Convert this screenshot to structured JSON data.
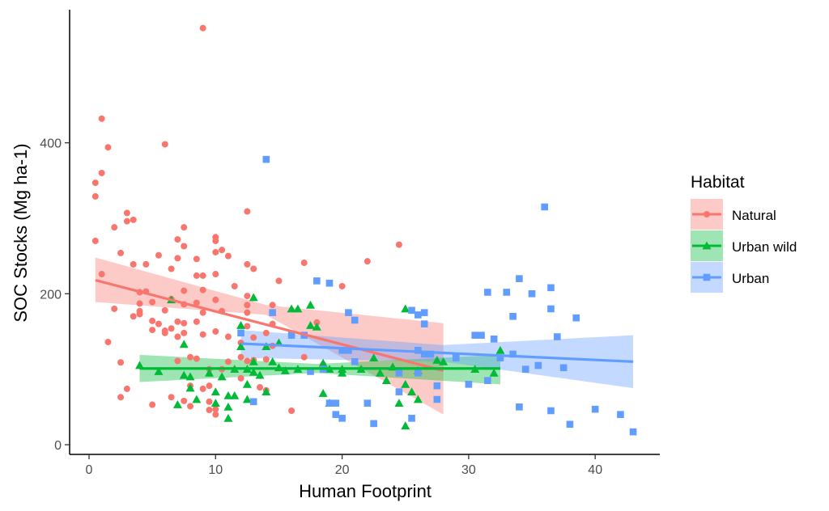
{
  "chart_data": {
    "type": "scatter",
    "xlabel": "Human Footprint",
    "ylabel": "SOC Stocks (Mg ha-1)",
    "xlim": [
      -1.5,
      45
    ],
    "ylim": [
      -25,
      575
    ],
    "x_ticks": [
      0,
      10,
      20,
      30,
      40
    ],
    "y_ticks": [
      0,
      200,
      400
    ],
    "grid": false,
    "legend": {
      "title": "Habitat",
      "placement": "right",
      "entries": [
        "Natural",
        "Urban wild",
        "Urban"
      ]
    },
    "series": [
      {
        "name": "Natural",
        "color": "#F8766D",
        "marker": "circle",
        "trend": [
          [
            0.5,
            218
          ],
          [
            28,
            98
          ]
        ],
        "band_upper": [
          [
            0.5,
            248
          ],
          [
            14,
            185
          ],
          [
            28,
            161
          ]
        ],
        "band_lower": [
          [
            0.5,
            189
          ],
          [
            14,
            172
          ],
          [
            28,
            40
          ]
        ],
        "points": [
          [
            0.5,
            347
          ],
          [
            0.5,
            329
          ],
          [
            0.5,
            270
          ],
          [
            1,
            432
          ],
          [
            1,
            360
          ],
          [
            1,
            226
          ],
          [
            1.5,
            394
          ],
          [
            1.5,
            136
          ],
          [
            2,
            288
          ],
          [
            2,
            180
          ],
          [
            2.5,
            254
          ],
          [
            2.5,
            109
          ],
          [
            2.5,
            63
          ],
          [
            3,
            307
          ],
          [
            3,
            296
          ],
          [
            3,
            74
          ],
          [
            3.5,
            298
          ],
          [
            3.5,
            239
          ],
          [
            3.5,
            170
          ],
          [
            4,
            202
          ],
          [
            4,
            187
          ],
          [
            4,
            177
          ],
          [
            4,
            173
          ],
          [
            4.5,
            239
          ],
          [
            4.5,
            203
          ],
          [
            5,
            189
          ],
          [
            5,
            164
          ],
          [
            5,
            152
          ],
          [
            5,
            53
          ],
          [
            5.5,
            251
          ],
          [
            5.5,
            160
          ],
          [
            6,
            398
          ],
          [
            6,
            178
          ],
          [
            6,
            151
          ],
          [
            6,
            148
          ],
          [
            6.5,
            233
          ],
          [
            6.5,
            193
          ],
          [
            6.5,
            154
          ],
          [
            6.5,
            63
          ],
          [
            7,
            272
          ],
          [
            7,
            247
          ],
          [
            7,
            163
          ],
          [
            7,
            143
          ],
          [
            7,
            111
          ],
          [
            7.5,
            288
          ],
          [
            7.5,
            263
          ],
          [
            7.5,
            204
          ],
          [
            7.5,
            186
          ],
          [
            7.5,
            161
          ],
          [
            7.5,
            148
          ],
          [
            7.5,
            58
          ],
          [
            8,
            116
          ],
          [
            8,
            78
          ],
          [
            8,
            51
          ],
          [
            8.5,
            246
          ],
          [
            8.5,
            224
          ],
          [
            8.5,
            188
          ],
          [
            8.5,
            163
          ],
          [
            8.5,
            114
          ],
          [
            9,
            552
          ],
          [
            9,
            224
          ],
          [
            9,
            205
          ],
          [
            9,
            175
          ],
          [
            9,
            146
          ],
          [
            9,
            74
          ],
          [
            9.5,
            100
          ],
          [
            9.5,
            78
          ],
          [
            9.5,
            57
          ],
          [
            9.5,
            46
          ],
          [
            10,
            275
          ],
          [
            10,
            270
          ],
          [
            10,
            255
          ],
          [
            10,
            226
          ],
          [
            10,
            192
          ],
          [
            10,
            150
          ],
          [
            10,
            47
          ],
          [
            10,
            40
          ],
          [
            10.5,
            258
          ],
          [
            10.5,
            177
          ],
          [
            10.5,
            100
          ],
          [
            11,
            250
          ],
          [
            11,
            143
          ],
          [
            11,
            110
          ],
          [
            11.5,
            210
          ],
          [
            12,
            135
          ],
          [
            12,
            116
          ],
          [
            12,
            88
          ],
          [
            12.5,
            309
          ],
          [
            12.5,
            239
          ],
          [
            12.5,
            197
          ],
          [
            12.5,
            185
          ],
          [
            12.5,
            175
          ],
          [
            12.5,
            157
          ],
          [
            12.5,
            111
          ],
          [
            13,
            233
          ],
          [
            13,
            142
          ],
          [
            13,
            112
          ],
          [
            13.5,
            76
          ],
          [
            14,
            148
          ],
          [
            14,
            113
          ],
          [
            14,
            72
          ],
          [
            14.5,
            185
          ],
          [
            14.5,
            160
          ],
          [
            14.5,
            131
          ],
          [
            15,
            217
          ],
          [
            16,
            45
          ],
          [
            17,
            241
          ],
          [
            17,
            116
          ],
          [
            18,
            162
          ],
          [
            18.5,
            106
          ],
          [
            20,
            210
          ],
          [
            22,
            243
          ],
          [
            24.5,
            265
          ]
        ]
      },
      {
        "name": "Urban wild",
        "color": "#00BA38",
        "marker": "triangle",
        "trend": [
          [
            4,
            101
          ],
          [
            32.5,
            101
          ]
        ],
        "band_upper": [
          [
            4,
            119
          ],
          [
            18,
            107
          ],
          [
            32.5,
            119
          ]
        ],
        "band_lower": [
          [
            4,
            83
          ],
          [
            18,
            95
          ],
          [
            32.5,
            80
          ]
        ],
        "points": [
          [
            4,
            105
          ],
          [
            5.5,
            97
          ],
          [
            6.5,
            192
          ],
          [
            7,
            53
          ],
          [
            7.5,
            133
          ],
          [
            7.5,
            92
          ],
          [
            8,
            90
          ],
          [
            8,
            75
          ],
          [
            8.5,
            60
          ],
          [
            9.5,
            95
          ],
          [
            10,
            70
          ],
          [
            10,
            55
          ],
          [
            10.5,
            90
          ],
          [
            11,
            65
          ],
          [
            11,
            50
          ],
          [
            11,
            35
          ],
          [
            11.5,
            65
          ],
          [
            11.5,
            100
          ],
          [
            12,
            158
          ],
          [
            12,
            130
          ],
          [
            12.5,
            60
          ],
          [
            12.5,
            80
          ],
          [
            12.5,
            100
          ],
          [
            13,
            195
          ],
          [
            13,
            110
          ],
          [
            13,
            96
          ],
          [
            13.5,
            92
          ],
          [
            14,
            130
          ],
          [
            14,
            70
          ],
          [
            14.5,
            110
          ],
          [
            15,
            135
          ],
          [
            15,
            102
          ],
          [
            15.5,
            98
          ],
          [
            16,
            180
          ],
          [
            16.5,
            180
          ],
          [
            16.5,
            100
          ],
          [
            17.5,
            185
          ],
          [
            17.5,
            158
          ],
          [
            18,
            156
          ],
          [
            18.5,
            108
          ],
          [
            18.5,
            68
          ],
          [
            19,
            55
          ],
          [
            19,
            100
          ],
          [
            20,
            95
          ],
          [
            20,
            100
          ],
          [
            21.5,
            100
          ],
          [
            22.5,
            115
          ],
          [
            23,
            95
          ],
          [
            23.5,
            85
          ],
          [
            24,
            103
          ],
          [
            24.5,
            55
          ],
          [
            25,
            180
          ],
          [
            25,
            80
          ],
          [
            25,
            25
          ],
          [
            25.5,
            70
          ],
          [
            26,
            60
          ],
          [
            26,
            98
          ],
          [
            27.5,
            112
          ],
          [
            28,
            110
          ],
          [
            30.5,
            100
          ],
          [
            32,
            95
          ],
          [
            32.5,
            125
          ]
        ]
      },
      {
        "name": "Urban",
        "color": "#619CFF",
        "marker": "square",
        "trend": [
          [
            12,
            134
          ],
          [
            43,
            110
          ]
        ],
        "band_upper": [
          [
            12,
            152
          ],
          [
            28,
            132
          ],
          [
            43,
            145
          ]
        ],
        "band_lower": [
          [
            12,
            115
          ],
          [
            28,
            110
          ],
          [
            43,
            75
          ]
        ],
        "points": [
          [
            12,
            148
          ],
          [
            13,
            57
          ],
          [
            14,
            378
          ],
          [
            14.5,
            175
          ],
          [
            16,
            145
          ],
          [
            17,
            145
          ],
          [
            17.5,
            97
          ],
          [
            18,
            217
          ],
          [
            18.5,
            100
          ],
          [
            19,
            214
          ],
          [
            19.5,
            40
          ],
          [
            19,
            55
          ],
          [
            19.5,
            55
          ],
          [
            20,
            35
          ],
          [
            20,
            125
          ],
          [
            20.5,
            175
          ],
          [
            20.5,
            125
          ],
          [
            21,
            165
          ],
          [
            21,
            110
          ],
          [
            22,
            55
          ],
          [
            22.5,
            28
          ],
          [
            24.5,
            70
          ],
          [
            24.5,
            95
          ],
          [
            25.5,
            178
          ],
          [
            26,
            172
          ],
          [
            26,
            125
          ],
          [
            26.5,
            175
          ],
          [
            26.5,
            160
          ],
          [
            25.5,
            35
          ],
          [
            26,
            95
          ],
          [
            26.5,
            120
          ],
          [
            27,
            120
          ],
          [
            27.5,
            60
          ],
          [
            27.5,
            78
          ],
          [
            30,
            80
          ],
          [
            30.5,
            145
          ],
          [
            31,
            145
          ],
          [
            31.5,
            202
          ],
          [
            31.5,
            85
          ],
          [
            32,
            140
          ],
          [
            32.5,
            115
          ],
          [
            33,
            202
          ],
          [
            33.5,
            170
          ],
          [
            33.5,
            120
          ],
          [
            34,
            220
          ],
          [
            34.5,
            100
          ],
          [
            35,
            200
          ],
          [
            35.5,
            105
          ],
          [
            36,
            315
          ],
          [
            36.5,
            208
          ],
          [
            36.5,
            180
          ],
          [
            37,
            143
          ],
          [
            37.5,
            102
          ],
          [
            38,
            27
          ],
          [
            38.5,
            168
          ],
          [
            40,
            47
          ],
          [
            42,
            40
          ],
          [
            43,
            17
          ],
          [
            34,
            50
          ],
          [
            29,
            115
          ],
          [
            36.5,
            45
          ]
        ]
      }
    ]
  }
}
